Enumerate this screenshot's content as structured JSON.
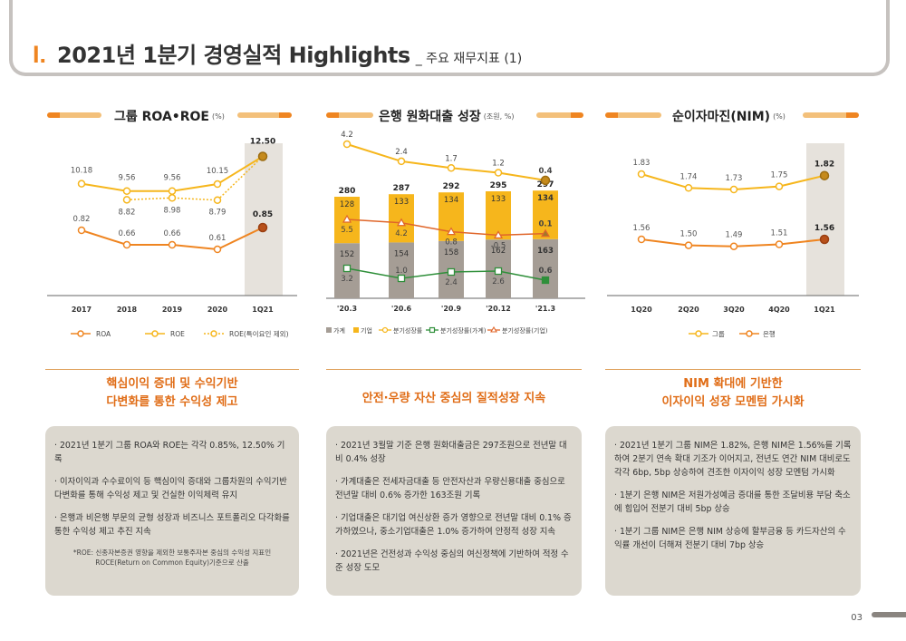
{
  "header": {
    "roman": "I.",
    "title": "2021년 1분기 경영실적 Highlights",
    "subtitle": "_ 주요 재무지표 (1)"
  },
  "panels": [
    {
      "title": "그룹 ROA•ROE",
      "unit": "(%)"
    },
    {
      "title": "은행 원화대출 성장",
      "unit": "(조원, %)"
    },
    {
      "title": "순이자마진(NIM)",
      "unit": "(%)"
    }
  ],
  "headlines": [
    {
      "line1": "핵심이익 증대 및 수익기반",
      "line2": "다변화를 통한 수익성 제고"
    },
    {
      "line1": "안전·우량 자산 중심의 질적성장 지속",
      "line2": ""
    },
    {
      "line1": "NIM 확대에 기반한",
      "line2": "이자이익 성장 모멘텀 가시화"
    }
  ],
  "text_boxes": [
    {
      "bullets": [
        "· 2021년 1분기 그룹 ROA와 ROE는 각각 0.85%, 12.50% 기록",
        "· 이자이익과 수수료이익 등 핵심이익 증대와 그룹차원의 수익기반 다변화를 통해 수익성 제고 및 건실한 이익체력 유지",
        "· 은행과 비은행 부문의 균형 성장과 비즈니스 포트폴리오 다각화를 통한 수익성 제고 추진 지속"
      ],
      "note": "*ROE: 신종자본증권 영향을 제외한 보통주자본 중심의 수익성 지표인 ROCE(Return on Common Equity)기준으로 산출"
    },
    {
      "bullets": [
        "· 2021년 3월말 기준 은행 원화대출금은 297조원으로 전년말 대비 0.4% 성장",
        "· 가계대출은 전세자금대출 등 안전자산과 우량신용대출 중심으로 전년말 대비 0.6% 증가한 163조원 기록",
        "· 기업대출은 대기업 여신상환 증가 영향으로 전년말 대비 0.1% 증가하였으나, 중소기업대출은 1.0% 증가하여 안정적 성장 지속",
        "· 2021년은 건전성과 수익성 중심의 여신정책에 기반하여 적정 수준 성장 도모"
      ],
      "note": ""
    },
    {
      "bullets": [
        "· 2021년 1분기 그룹 NIM은 1.82%, 은행 NIM은 1.56%를 기록하여 2분기 연속 확대 기조가 이어지고, 전년도 연간 NIM 대비로도 각각 6bp, 5bp 상승하여 견조한 이자이익 성장 모멘텀 가시화",
        "· 1분기 은행 NIM은 저원가성예금 증대를 통한 조달비용 부담 축소에 힘입어 전분기 대비 5bp 상승",
        "· 1분기 그룹 NIM은 은행 NIM 상승에 할부금융 등 카드자산의 수익률 개선이 더해져 전분기 대비 7bp 상승"
      ],
      "note": ""
    }
  ],
  "page_number": "03",
  "colors": {
    "accent": "#ef8521",
    "yellow": "#f6b61c",
    "gray": "#a59d95",
    "green": "#2f8f3a",
    "highlight": "#e6e2dc"
  },
  "chart_data": [
    {
      "type": "line",
      "x": [
        "2017",
        "2018",
        "2019",
        "2020",
        "1Q21"
      ],
      "series": [
        {
          "name": "ROA",
          "values": [
            0.82,
            0.66,
            0.66,
            0.61,
            0.85
          ],
          "labels": [
            "0.82",
            "0.66",
            "0.66",
            "0.61",
            "0.85"
          ]
        },
        {
          "name": "ROE",
          "values": [
            10.18,
            9.56,
            9.56,
            10.15,
            12.5
          ],
          "labels": [
            "10.18",
            "9.56",
            "9.56",
            "10.15",
            "12.50"
          ]
        },
        {
          "name": "ROE(특이요인 제외)",
          "values": [
            null,
            8.82,
            8.98,
            8.79,
            12.5
          ],
          "labels": [
            "",
            "8.82",
            "8.98",
            "8.79",
            ""
          ]
        }
      ],
      "legend": [
        "ROA",
        "ROE",
        "ROE(특이요인 제외)"
      ]
    },
    {
      "type": "bar",
      "categories": [
        "'20.3",
        "'20.6",
        "'20.9",
        "'20.12",
        "'21.3"
      ],
      "stack": [
        {
          "name": "가계",
          "values": [
            152,
            154,
            158,
            162,
            163
          ]
        },
        {
          "name": "기업",
          "values": [
            128,
            133,
            134,
            133,
            134
          ]
        }
      ],
      "totals": [
        280,
        287,
        292,
        295,
        297
      ],
      "growth": [
        {
          "name": "분기성장률",
          "values": [
            4.2,
            2.4,
            1.7,
            1.2,
            0.4
          ],
          "labels": [
            "4.2",
            "2.4",
            "1.7",
            "1.2",
            "0.4"
          ]
        },
        {
          "name": "분기성장률(가계)",
          "values": [
            3.2,
            1.0,
            2.4,
            2.6,
            0.6
          ],
          "labels": [
            "3.2",
            "1.0",
            "2.4",
            "2.6",
            "0.6"
          ]
        },
        {
          "name": "분기성장률(기업)",
          "values": [
            5.5,
            4.2,
            0.8,
            -0.5,
            0.1
          ],
          "labels": [
            "5.5",
            "4.2",
            "0.8",
            "-0.5",
            "0.1"
          ]
        }
      ],
      "legend": [
        "가계",
        "기업",
        "분기성장률",
        "분기성장률(가계)",
        "분기성장률(기업)"
      ]
    },
    {
      "type": "line",
      "x": [
        "1Q20",
        "2Q20",
        "3Q20",
        "4Q20",
        "1Q21"
      ],
      "series": [
        {
          "name": "그룹",
          "values": [
            1.83,
            1.74,
            1.73,
            1.75,
            1.82
          ],
          "labels": [
            "1.83",
            "1.74",
            "1.73",
            "1.75",
            "1.82"
          ]
        },
        {
          "name": "은행",
          "values": [
            1.56,
            1.5,
            1.49,
            1.51,
            1.56
          ],
          "labels": [
            "1.56",
            "1.50",
            "1.49",
            "1.51",
            "1.56"
          ]
        }
      ],
      "legend": [
        "그룹",
        "은행"
      ]
    }
  ]
}
